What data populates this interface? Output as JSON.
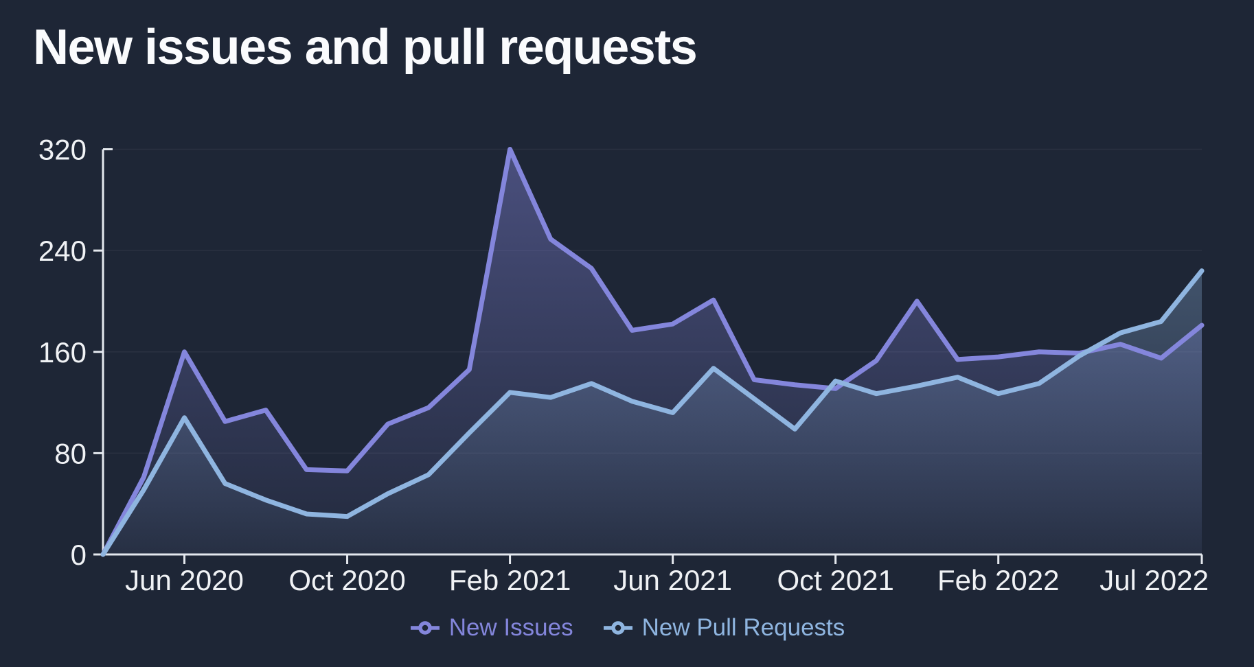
{
  "title": "New issues and pull requests",
  "colors": {
    "background": "#1e2636",
    "title_text": "#fafbfd",
    "axis": "#e4e8ee",
    "tick_label": "#f0f2f5",
    "gridline": "rgba(255,255,255,0.055)",
    "issues_line": "#8486DC",
    "pull_requests_line": "#8FB5E0"
  },
  "chart_data": {
    "type": "line",
    "title": "New issues and pull requests",
    "xlabel": "",
    "ylabel": "",
    "ylim": [
      0,
      320
    ],
    "y_ticks": [
      0,
      80,
      160,
      240,
      320
    ],
    "x_tick_labels": [
      "Jun 2020",
      "Oct 2020",
      "Feb 2021",
      "Jun 2021",
      "Oct 2021",
      "Feb 2022",
      "Jul 2022"
    ],
    "x_tick_month_indices": [
      2,
      6,
      10,
      14,
      18,
      22,
      27
    ],
    "grid": "horizontal, very faint",
    "legend_position": "bottom-center",
    "area_fill": "gradient fading downward, both series filled to baseline",
    "categories": [
      "Apr 2020",
      "May 2020",
      "Jun 2020",
      "Jul 2020",
      "Aug 2020",
      "Sep 2020",
      "Oct 2020",
      "Nov 2020",
      "Dec 2020",
      "Jan 2021",
      "Feb 2021",
      "Mar 2021",
      "Apr 2021",
      "May 2021",
      "Jun 2021",
      "Jul 2021",
      "Aug 2021",
      "Sep 2021",
      "Oct 2021",
      "Nov 2021",
      "Dec 2021",
      "Jan 2022",
      "Feb 2022",
      "Mar 2022",
      "Apr 2022",
      "May 2022",
      "Jun 2022",
      "Jul 2022"
    ],
    "series": [
      {
        "name": "New Issues",
        "color": "#8486DC",
        "values": [
          0,
          61,
          160,
          105,
          114,
          67,
          66,
          103,
          116,
          146,
          320,
          249,
          226,
          177,
          182,
          201,
          138,
          134,
          131,
          153,
          200,
          154,
          156,
          160,
          159,
          166,
          155,
          181
        ]
      },
      {
        "name": "New Pull Requests",
        "color": "#8FB5E0",
        "values": [
          0,
          51,
          108,
          56,
          43,
          32,
          30,
          48,
          63,
          96,
          128,
          124,
          135,
          121,
          112,
          147,
          123,
          99,
          137,
          127,
          133,
          140,
          127,
          135,
          157,
          175,
          184,
          224
        ]
      }
    ]
  },
  "legend": {
    "items": [
      {
        "label": "New Issues",
        "color": "#8486DC"
      },
      {
        "label": "New Pull Requests",
        "color": "#8FB5E0"
      }
    ]
  }
}
